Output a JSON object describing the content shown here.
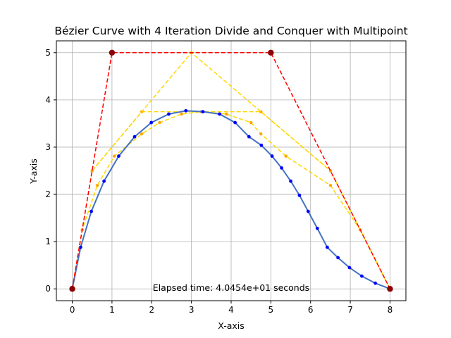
{
  "chart_data": {
    "type": "line",
    "title": "Bézier Curve with 4 Iteration Divide and Conquer with Multipoint",
    "xlabel": "X-axis",
    "ylabel": "Y-axis",
    "xlim": [
      -0.4,
      8.4
    ],
    "ylim": [
      -0.25,
      5.25
    ],
    "xticks": [
      0,
      1,
      2,
      3,
      4,
      5,
      6,
      7,
      8
    ],
    "yticks": [
      0,
      1,
      2,
      3,
      4,
      5
    ],
    "grid": true,
    "annotation": "Elapsed time: 4.0454e+01 seconds",
    "colors": {
      "control": "#ff0000",
      "control_point": "#8b0000",
      "construction": "#ffd700",
      "construction_point": "#ffa500",
      "curve": "#4472c4",
      "curve_point": "#0000ff",
      "grid": "#b0b0b0"
    },
    "series": [
      {
        "role": "control",
        "x": [
          0,
          1,
          5,
          8
        ],
        "y": [
          0,
          5,
          5,
          0
        ]
      },
      {
        "role": "construction",
        "x": [
          0,
          0.5,
          1.75,
          3.25,
          4.75,
          6.5,
          8
        ],
        "y": [
          0,
          2.5,
          3.75,
          3.75,
          3.75,
          2.5,
          0
        ]
      },
      {
        "role": "construction",
        "x": [
          0.5,
          3,
          6.5
        ],
        "y": [
          2.5,
          5,
          2.5
        ]
      },
      {
        "role": "construction",
        "x": [
          0,
          0.25,
          0.63,
          1.06,
          1.75,
          2.2,
          2.75,
          3.25,
          3.88,
          4.5,
          4.75,
          5.38,
          6.5,
          7.25,
          8
        ],
        "y": [
          0,
          1.25,
          2.19,
          2.81,
          3.28,
          3.52,
          3.7,
          3.75,
          3.7,
          3.52,
          3.28,
          2.81,
          2.19,
          1.25,
          0
        ]
      },
      {
        "role": "curve",
        "x": [
          0,
          0.21,
          0.48,
          0.8,
          1.17,
          1.57,
          1.99,
          2.43,
          2.86,
          3.29,
          3.71,
          4.1,
          4.45,
          4.76,
          5.03,
          5.27,
          5.5,
          5.72,
          5.94,
          6.17,
          6.42,
          6.69,
          6.98,
          7.29,
          7.63,
          8
        ],
        "y": [
          0,
          0.88,
          1.64,
          2.28,
          2.81,
          3.22,
          3.52,
          3.7,
          3.77,
          3.75,
          3.7,
          3.52,
          3.22,
          3.04,
          2.81,
          2.56,
          2.28,
          1.98,
          1.64,
          1.28,
          0.88,
          0.66,
          0.45,
          0.27,
          0.12,
          0
        ]
      }
    ]
  }
}
